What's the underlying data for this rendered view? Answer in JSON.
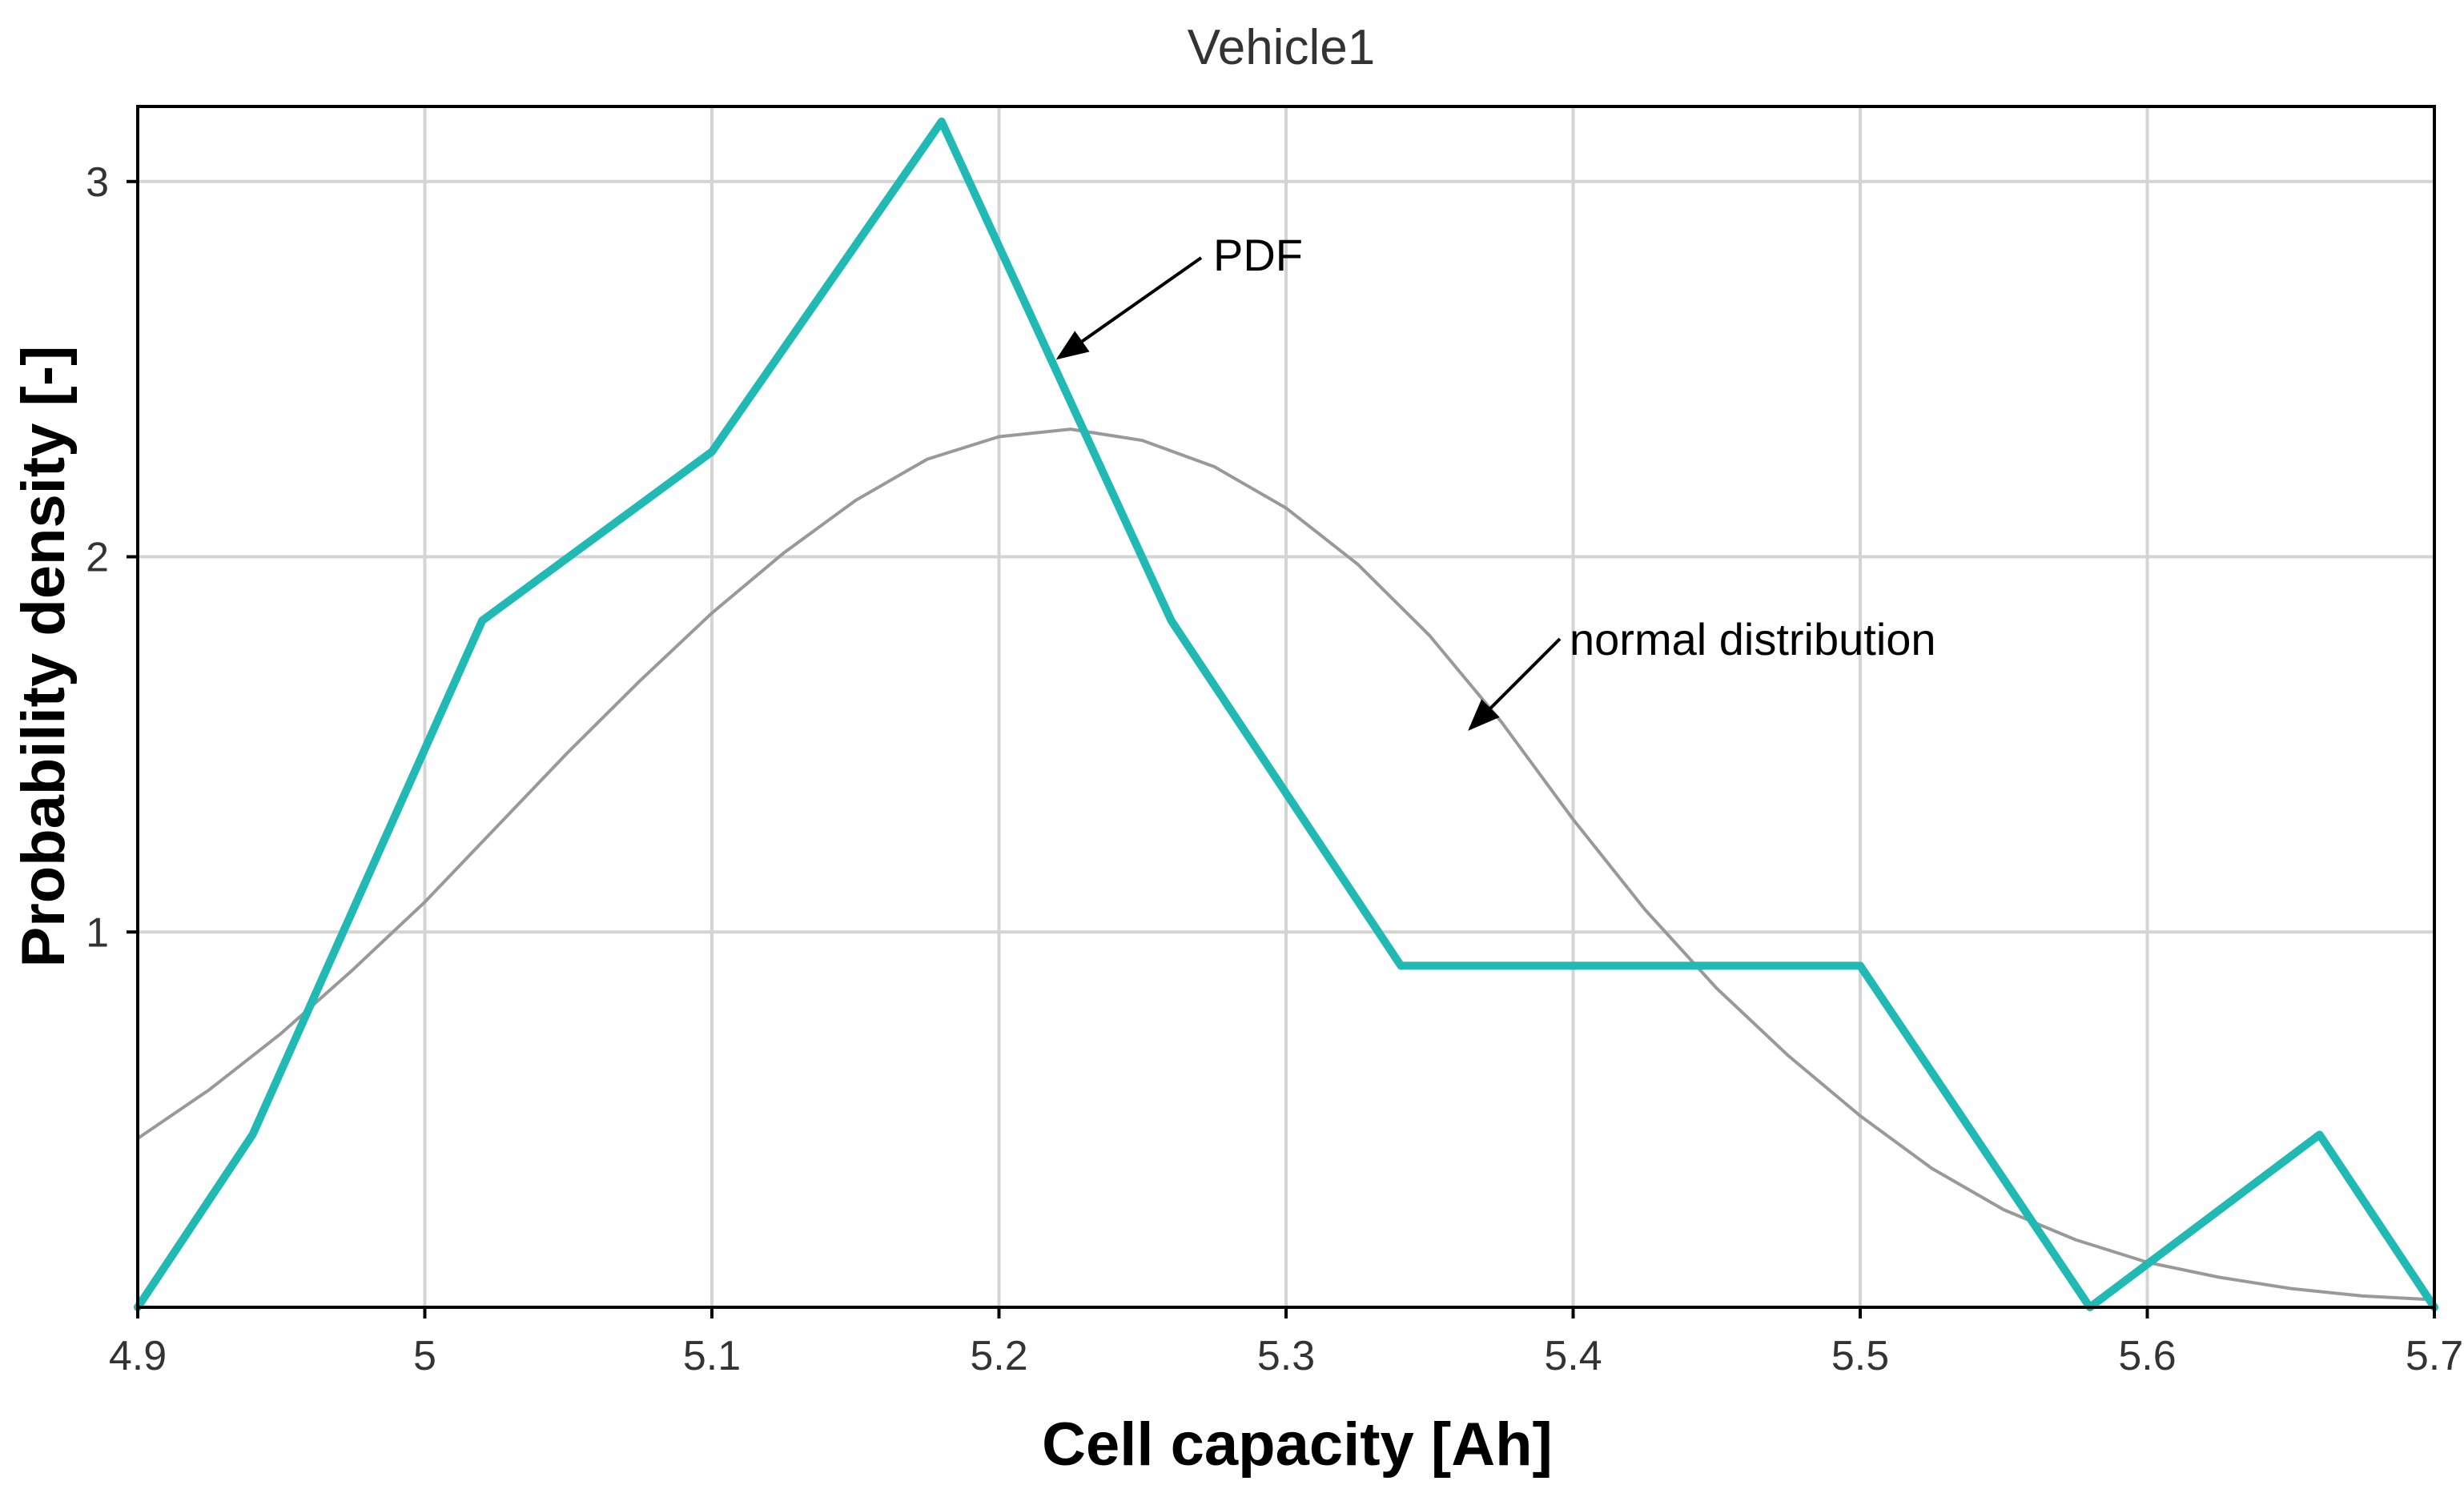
{
  "chart_data": {
    "type": "line",
    "title": "Vehicle1",
    "xlabel": "Cell capacity [Ah]",
    "ylabel": "Probability density [-]",
    "xlim": [
      4.9,
      5.7
    ],
    "ylim": [
      0,
      3.2
    ],
    "grid": true,
    "x_ticks": [
      4.9,
      5.0,
      5.1,
      5.2,
      5.3,
      5.4,
      5.5,
      5.6,
      5.7
    ],
    "x_tick_labels": [
      "4.9",
      "5",
      "5.1",
      "5.2",
      "5.3",
      "5.4",
      "5.5",
      "5.6",
      "5.7"
    ],
    "y_ticks": [
      1,
      2,
      3
    ],
    "y_tick_labels": [
      "1",
      "2",
      "3"
    ],
    "series": [
      {
        "name": "PDF",
        "color": "#20b9b4",
        "x": [
          4.9,
          4.94,
          5.02,
          5.1,
          5.18,
          5.26,
          5.34,
          5.42,
          5.5,
          5.58,
          5.66,
          5.7
        ],
        "y": [
          0.0,
          0.46,
          1.83,
          2.28,
          3.16,
          1.83,
          0.91,
          0.91,
          0.91,
          0.0,
          0.46,
          0.0
        ]
      },
      {
        "name": "normal distribution",
        "color": "#999999",
        "x": [
          4.9,
          4.925,
          4.95,
          4.975,
          5.0,
          5.025,
          5.05,
          5.075,
          5.1,
          5.125,
          5.15,
          5.175,
          5.2,
          5.225,
          5.25,
          5.275,
          5.3,
          5.325,
          5.35,
          5.375,
          5.4,
          5.425,
          5.45,
          5.475,
          5.5,
          5.525,
          5.55,
          5.575,
          5.6,
          5.625,
          5.65,
          5.675,
          5.7
        ],
        "y": [
          0.45,
          0.58,
          0.73,
          0.9,
          1.08,
          1.28,
          1.48,
          1.67,
          1.85,
          2.01,
          2.15,
          2.26,
          2.32,
          2.34,
          2.31,
          2.24,
          2.13,
          1.98,
          1.79,
          1.56,
          1.3,
          1.06,
          0.85,
          0.67,
          0.51,
          0.37,
          0.26,
          0.18,
          0.12,
          0.08,
          0.05,
          0.03,
          0.02
        ]
      }
    ],
    "annotations": [
      {
        "text": "PDF",
        "target": "PDF"
      },
      {
        "text": "normal distribution",
        "target": "normal distribution"
      }
    ]
  }
}
